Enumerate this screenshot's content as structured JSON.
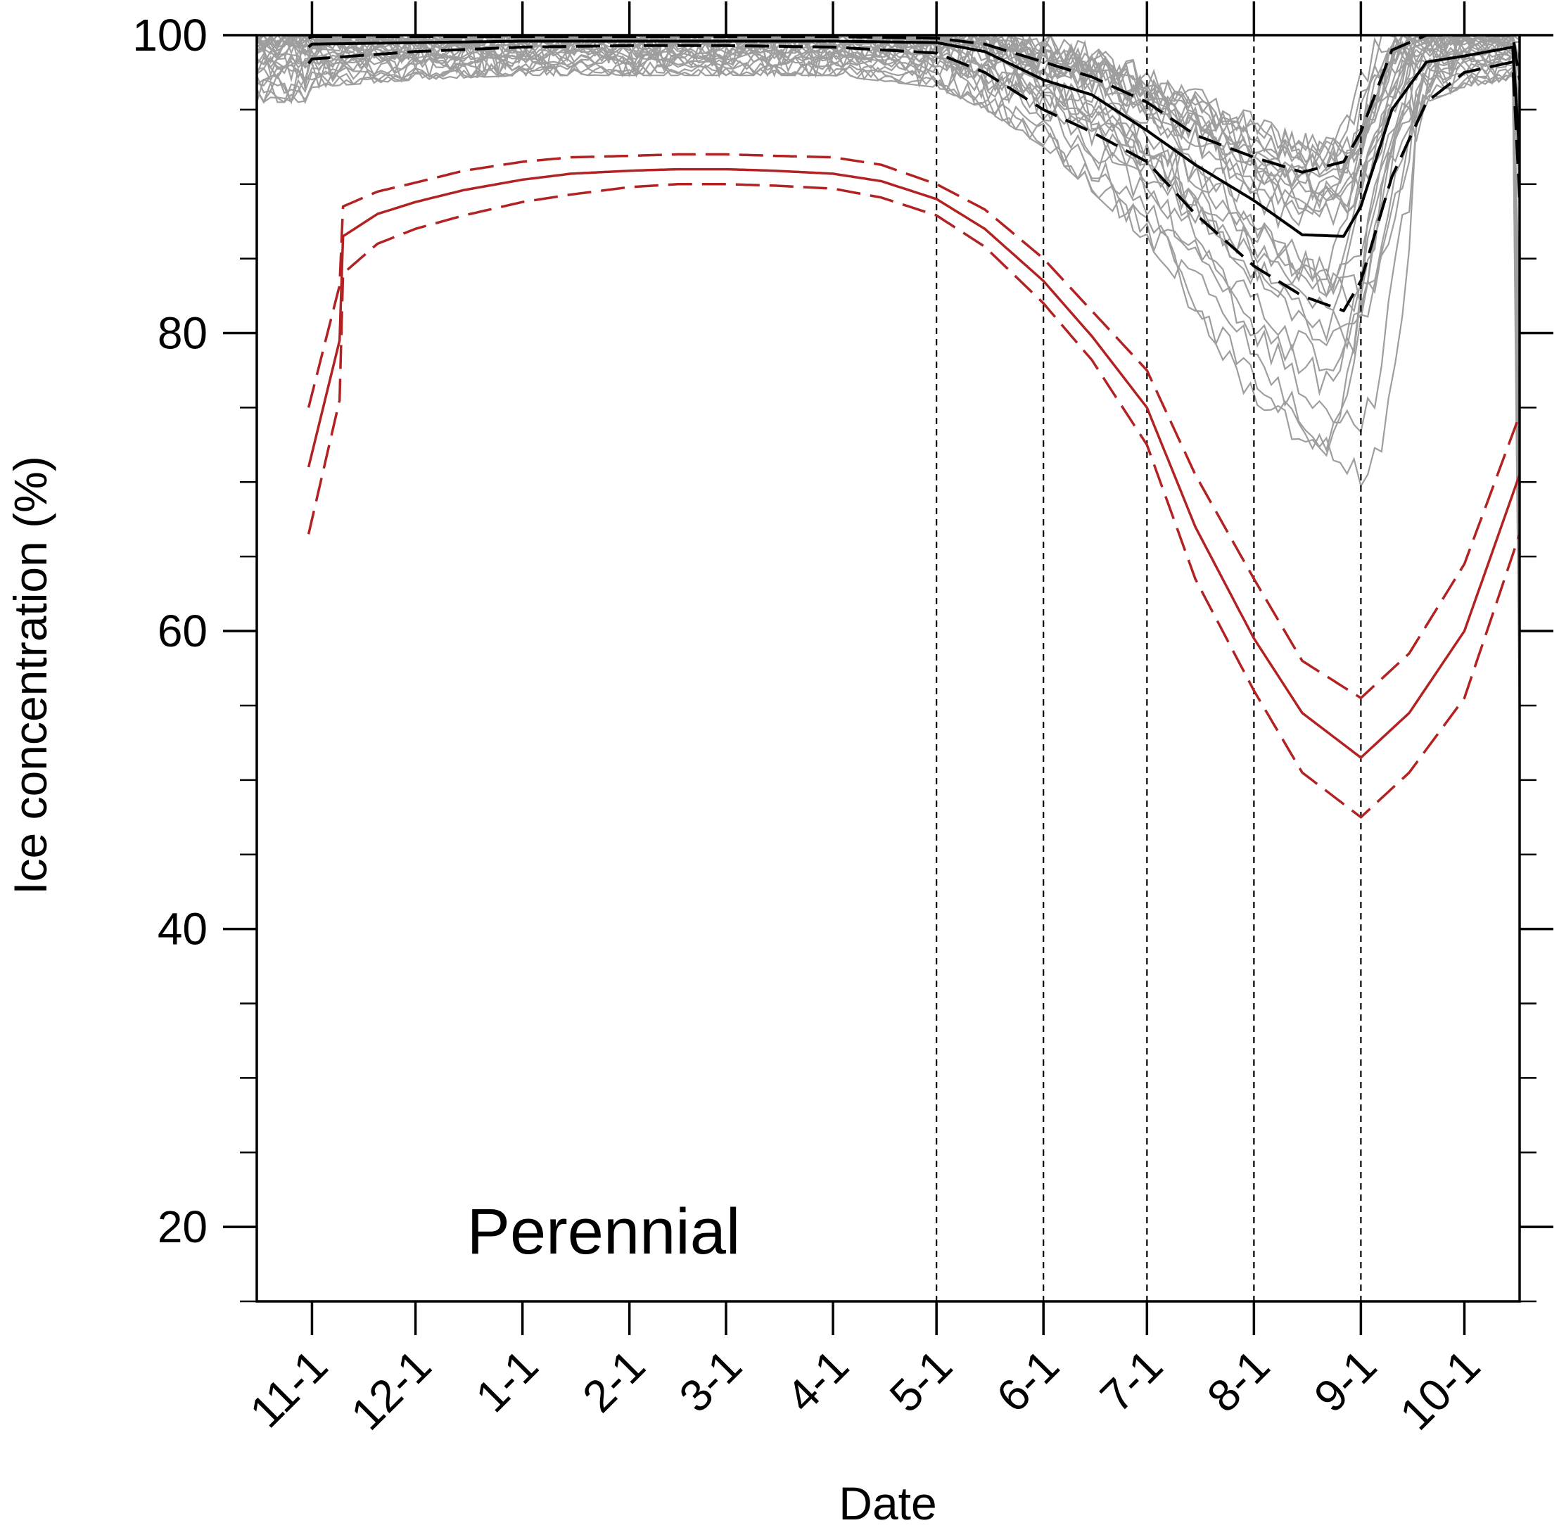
{
  "chart_data": {
    "type": "line",
    "title": "",
    "xlabel": "Date",
    "ylabel": "Ice concentration (%)",
    "annotation": "Perennial",
    "x_tick_labels": [
      "11-1",
      "12-1",
      "1-1",
      "2-1",
      "3-1",
      "4-1",
      "5-1",
      "6-1",
      "7-1",
      "8-1",
      "9-1",
      "10-1"
    ],
    "y_tick_labels": [
      "20",
      "40",
      "60",
      "80",
      "100"
    ],
    "y_ticks": [
      20,
      40,
      60,
      80,
      100
    ],
    "y_minor_ticks": [
      15,
      25,
      30,
      35,
      45,
      50,
      55,
      65,
      70,
      75,
      85,
      90,
      95
    ],
    "ylim": [
      15,
      100
    ],
    "xlim": [
      "10-16",
      "10-18"
    ],
    "vertical_reference_lines": [
      "5-1",
      "6-1",
      "7-1",
      "8-1",
      "9-1"
    ],
    "grid": false,
    "legend": "none",
    "ensemble_member_count": 30,
    "colors": {
      "model": "#b22222",
      "observation": "#000000",
      "members": "#9e9e9e",
      "frame": "#000000"
    },
    "series": [
      {
        "role": "model-mean",
        "style": "solid",
        "color": "#b22222",
        "x": [
          "10-16",
          "10-25",
          "11-1",
          "11-10",
          "11-20",
          "12-1",
          "12-15",
          "1-1",
          "1-15",
          "2-1",
          "2-15",
          "3-1",
          "3-15",
          "4-1",
          "4-15",
          "5-1",
          "5-15",
          "6-1",
          "6-15",
          "7-1",
          "7-15",
          "8-1",
          "8-15",
          "9-1",
          "9-15",
          "10-1",
          "10-17"
        ],
        "y": [
          71.0,
          79.5,
          83.2,
          86.5,
          88.0,
          88.8,
          89.6,
          90.3,
          90.7,
          90.9,
          91.0,
          91.0,
          90.9,
          90.7,
          90.2,
          89.0,
          87.0,
          83.5,
          79.8,
          75.0,
          67.0,
          59.5,
          54.5,
          51.5,
          54.5,
          60.0,
          70.5
        ]
      },
      {
        "role": "model-upper",
        "style": "dashed",
        "color": "#b22222",
        "x": [
          "10-16",
          "10-25",
          "11-1",
          "11-10",
          "11-20",
          "12-1",
          "12-15",
          "1-1",
          "1-15",
          "2-1",
          "2-15",
          "3-1",
          "3-15",
          "4-1",
          "4-15",
          "5-1",
          "5-15",
          "6-1",
          "6-15",
          "7-1",
          "7-15",
          "8-1",
          "8-15",
          "9-1",
          "9-15",
          "10-1",
          "10-17"
        ],
        "y": [
          75.0,
          83.2,
          86.5,
          88.5,
          89.5,
          90.1,
          90.9,
          91.5,
          91.8,
          91.9,
          92.0,
          92.0,
          91.9,
          91.8,
          91.3,
          90.0,
          88.3,
          85.0,
          81.5,
          77.5,
          70.5,
          63.5,
          58.0,
          55.5,
          58.5,
          64.5,
          74.5
        ]
      },
      {
        "role": "model-lower",
        "style": "dashed",
        "color": "#b22222",
        "x": [
          "10-16",
          "10-25",
          "11-1",
          "11-10",
          "11-20",
          "12-1",
          "12-15",
          "1-1",
          "1-15",
          "2-1",
          "2-15",
          "3-1",
          "3-15",
          "4-1",
          "4-15",
          "5-1",
          "5-15",
          "6-1",
          "6-15",
          "7-1",
          "7-15",
          "8-1",
          "8-15",
          "9-1",
          "9-15",
          "10-1",
          "10-17"
        ],
        "y": [
          66.5,
          75.5,
          80.5,
          84.0,
          86.0,
          87.0,
          87.9,
          88.8,
          89.3,
          89.8,
          90.0,
          90.0,
          89.9,
          89.7,
          89.1,
          87.9,
          85.8,
          82.0,
          78.2,
          72.5,
          63.5,
          56.0,
          50.5,
          47.5,
          50.5,
          55.5,
          66.5
        ]
      },
      {
        "role": "observed-mean",
        "style": "solid",
        "color": "#000000",
        "x": [
          "10-16",
          "11-1",
          "12-1",
          "1-1",
          "2-1",
          "3-1",
          "4-1",
          "5-1",
          "5-15",
          "6-1",
          "6-15",
          "7-1",
          "7-15",
          "8-1",
          "8-15",
          "8-27",
          "9-1",
          "9-10",
          "9-20",
          "10-1",
          "10-15",
          "10-17"
        ],
        "y": [
          99.2,
          99.4,
          99.5,
          99.6,
          99.6,
          99.6,
          99.6,
          99.5,
          98.9,
          97.0,
          96.0,
          93.6,
          91.3,
          88.9,
          86.6,
          86.5,
          88.5,
          95.0,
          98.2,
          98.6,
          99.2,
          92.0
        ]
      },
      {
        "role": "observed-upper",
        "style": "dashed",
        "color": "#000000",
        "x": [
          "10-16",
          "11-1",
          "12-1",
          "1-1",
          "2-1",
          "3-1",
          "4-1",
          "5-1",
          "5-15",
          "6-1",
          "6-15",
          "7-1",
          "7-15",
          "8-1",
          "8-15",
          "8-27",
          "9-1",
          "9-10",
          "9-20",
          "10-1",
          "10-15",
          "10-17"
        ],
        "y": [
          99.8,
          99.9,
          99.9,
          99.9,
          99.9,
          99.9,
          99.9,
          99.8,
          99.4,
          98.2,
          97.2,
          95.5,
          93.3,
          91.8,
          90.8,
          91.5,
          93.5,
          99.0,
          100,
          100,
          100,
          97.0
        ]
      },
      {
        "role": "observed-lower",
        "style": "dashed",
        "color": "#000000",
        "x": [
          "10-16",
          "11-1",
          "12-1",
          "1-1",
          "2-1",
          "3-1",
          "4-1",
          "5-1",
          "5-15",
          "6-1",
          "6-15",
          "7-1",
          "7-15",
          "8-1",
          "8-15",
          "8-27",
          "9-1",
          "9-10",
          "9-20",
          "10-1",
          "10-15",
          "10-17"
        ],
        "y": [
          98.1,
          98.4,
          98.9,
          99.2,
          99.3,
          99.3,
          99.2,
          98.8,
          97.5,
          95.0,
          93.5,
          91.5,
          88.0,
          84.5,
          82.5,
          81.5,
          83.5,
          90.5,
          95.5,
          97.5,
          98.2,
          89.0
        ]
      }
    ],
    "ensemble_envelope": {
      "role": "individual-years",
      "color": "#9e9e9e",
      "x": [
        "10-16",
        "11-1",
        "12-1",
        "1-1",
        "2-1",
        "3-1",
        "4-1",
        "5-1",
        "5-15",
        "6-1",
        "6-15",
        "7-1",
        "7-15",
        "8-1",
        "8-15",
        "8-27",
        "9-1",
        "9-10",
        "9-20",
        "10-1",
        "10-15",
        "10-17"
      ],
      "upper": [
        100,
        100,
        100,
        100,
        100,
        100,
        100,
        100,
        100,
        99.3,
        98.5,
        97.0,
        95.5,
        93.5,
        92.5,
        92.5,
        95.0,
        100,
        100,
        100,
        100,
        100
      ],
      "lower": [
        95.5,
        96.5,
        97.0,
        97.3,
        97.3,
        97.3,
        97.3,
        96.5,
        95.0,
        92.5,
        89.5,
        86.0,
        82.0,
        76.0,
        72.0,
        69.5,
        72.0,
        86.0,
        95.5,
        96.5,
        97.0,
        52.0
      ]
    }
  }
}
